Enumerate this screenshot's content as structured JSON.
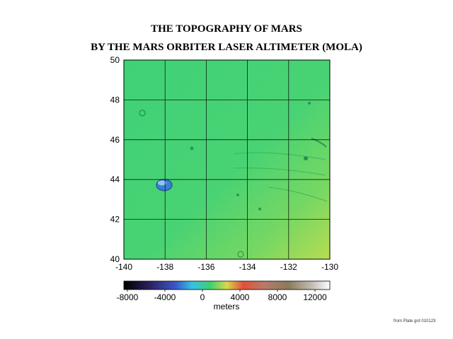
{
  "title_line1": "THE TOPOGRAPHY OF MARS",
  "title_line2": "BY THE MARS ORBITER LASER ALTIMETER (MOLA)",
  "map": {
    "x_ticks": [
      "-140",
      "-138",
      "-136",
      "-134",
      "-132",
      "-130"
    ],
    "y_ticks": [
      "50",
      "48",
      "46",
      "44",
      "42",
      "40"
    ],
    "x_range": [
      -140,
      -130
    ],
    "y_range": [
      40,
      50
    ],
    "grid": true,
    "colors": {
      "base_green": "#3ed070",
      "yellow_green": "#a9d94a",
      "crater_blue": "#3a7fd6"
    }
  },
  "colorbar": {
    "ticks": [
      "-8000",
      "-4000",
      "0",
      "4000",
      "8000",
      "12000"
    ],
    "label": "meters",
    "range": [
      -9000,
      13000
    ],
    "stops": [
      "#000000",
      "#2b1f5a",
      "#3b56c8",
      "#35c1e6",
      "#3ed070",
      "#d8d84a",
      "#e0503a",
      "#b97a6a",
      "#8c7a5c",
      "#c7c1ba",
      "#ffffff"
    ]
  },
  "credit": "from Plate grd 010123"
}
